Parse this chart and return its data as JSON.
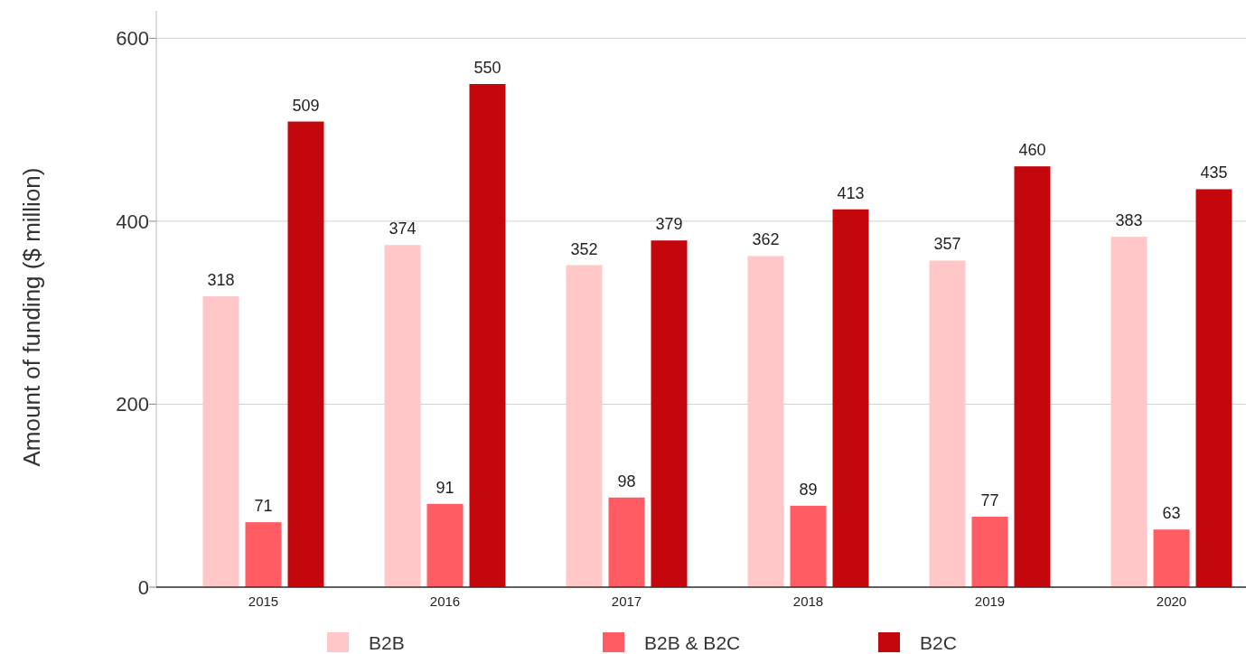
{
  "chart_data": {
    "type": "bar",
    "ylabel": "Amount of funding ($ million)",
    "categories": [
      "2015",
      "2016",
      "2017",
      "2018",
      "2019",
      "2020"
    ],
    "series": [
      {
        "name": "B2B",
        "color": "#ffc7c8",
        "values": [
          318,
          374,
          352,
          362,
          357,
          383
        ]
      },
      {
        "name": "B2B & B2C",
        "color": "#ff5c64",
        "values": [
          71,
          91,
          98,
          89,
          77,
          63
        ]
      },
      {
        "name": "B2C",
        "color": "#c3070c",
        "values": [
          509,
          550,
          379,
          413,
          460,
          435
        ]
      }
    ],
    "ylim": [
      0,
      630
    ],
    "yticks": [
      0,
      200,
      400,
      600
    ],
    "grid": "y",
    "legend": "bottom",
    "data_labels": true
  }
}
